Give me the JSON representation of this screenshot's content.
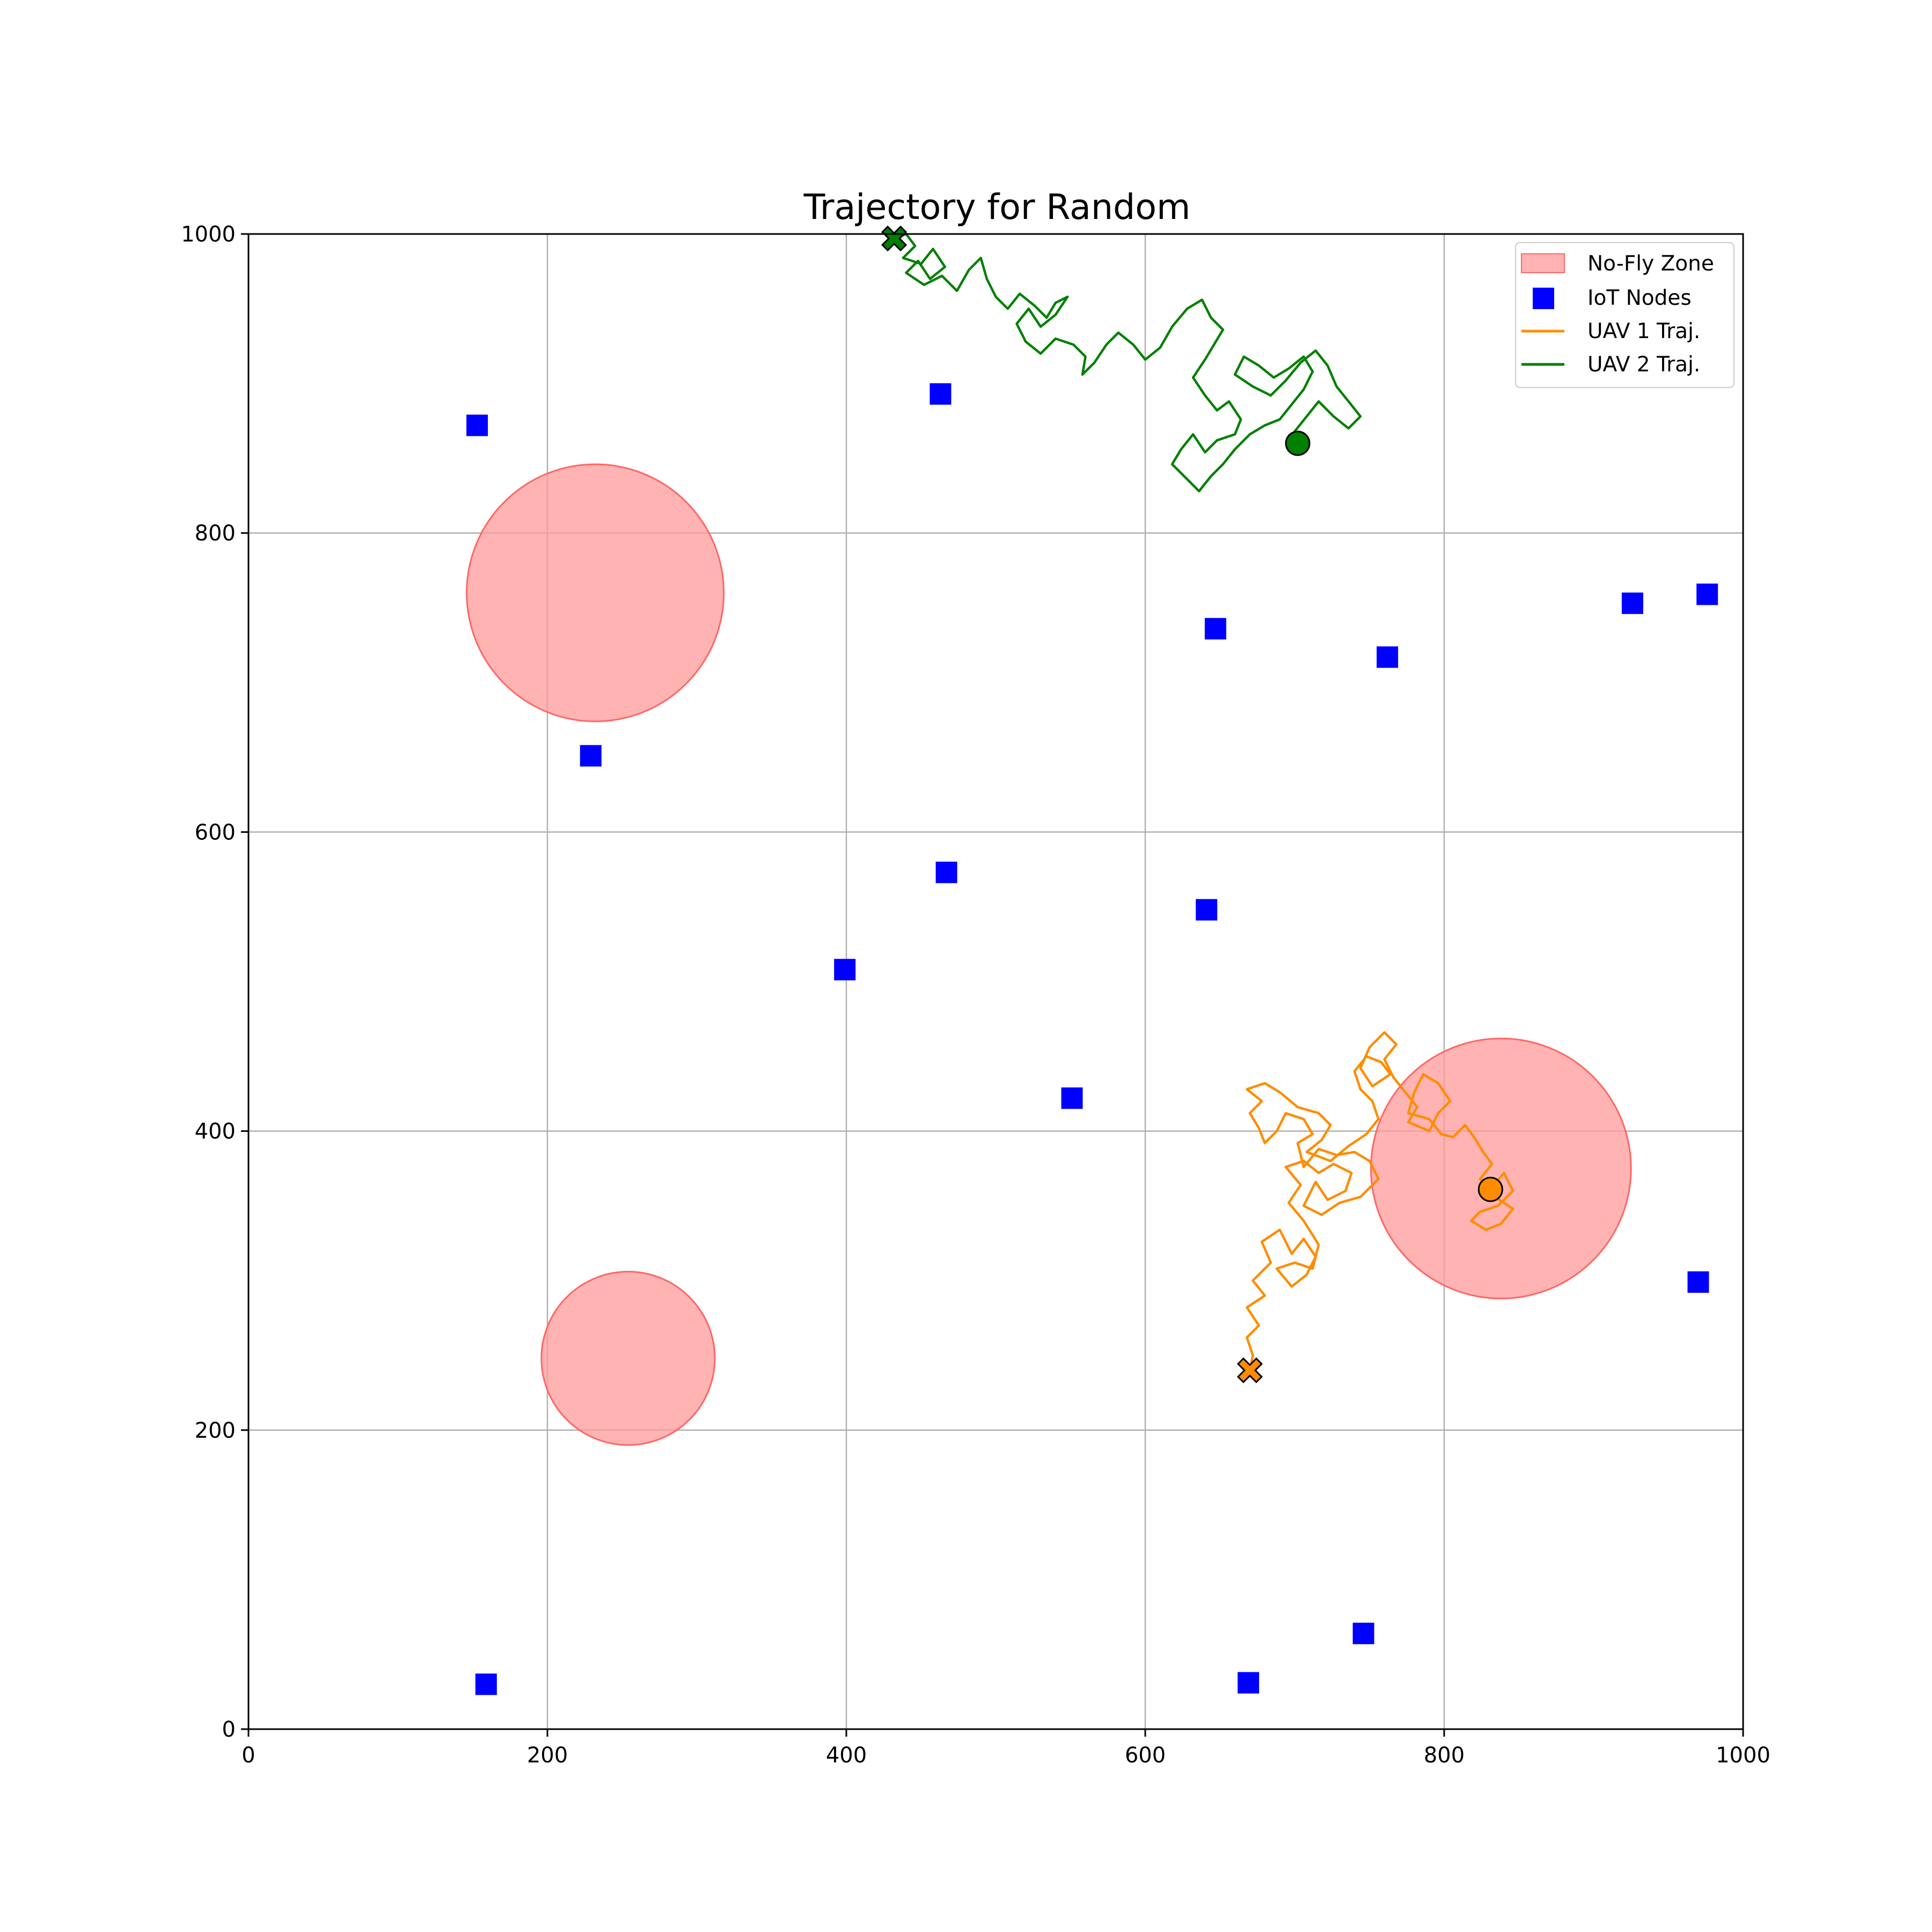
{
  "chart_data": {
    "type": "scatter",
    "title": "Trajectory for Random",
    "xlabel": "",
    "ylabel": "",
    "xlim": [
      0,
      1000
    ],
    "ylim": [
      0,
      1000
    ],
    "xticks": [
      0,
      200,
      400,
      600,
      800,
      1000
    ],
    "yticks": [
      0,
      200,
      400,
      600,
      800,
      1000
    ],
    "xtick_labels": [
      "0",
      "200",
      "400",
      "600",
      "800",
      "1000"
    ],
    "ytick_labels": [
      "0",
      "200",
      "400",
      "600",
      "800",
      "1000"
    ],
    "grid": true,
    "legend_position": "top-right",
    "legend": [
      {
        "label": "No-Fly Zone",
        "kind": "patch"
      },
      {
        "label": "IoT Nodes",
        "kind": "square-marker"
      },
      {
        "label": "UAV 1 Traj.",
        "kind": "line"
      },
      {
        "label": "UAV 2 Traj.",
        "kind": "line"
      }
    ],
    "colors": {
      "no_fly_fill": "#ff9999",
      "no_fly_edge": "#ff6666",
      "iot": "#0000ff",
      "uav1": "#ff8c00",
      "uav2": "#008000",
      "grid": "#b0b0b0"
    },
    "no_fly_zones": [
      {
        "cx": 232,
        "cy": 760,
        "r": 86
      },
      {
        "cx": 254,
        "cy": 248,
        "r": 58
      },
      {
        "cx": 838,
        "cy": 375,
        "r": 87
      }
    ],
    "iot_nodes": [
      {
        "x": 153,
        "y": 872
      },
      {
        "x": 463,
        "y": 893
      },
      {
        "x": 647,
        "y": 736
      },
      {
        "x": 762,
        "y": 717
      },
      {
        "x": 926,
        "y": 753
      },
      {
        "x": 976,
        "y": 759
      },
      {
        "x": 229,
        "y": 651
      },
      {
        "x": 467,
        "y": 573
      },
      {
        "x": 641,
        "y": 548
      },
      {
        "x": 399,
        "y": 508
      },
      {
        "x": 551,
        "y": 422
      },
      {
        "x": 970,
        "y": 299
      },
      {
        "x": 159,
        "y": 30
      },
      {
        "x": 669,
        "y": 31
      },
      {
        "x": 746,
        "y": 64
      }
    ],
    "series": [
      {
        "name": "UAV 1 Traj.",
        "start": {
          "x": 670,
          "y": 240,
          "marker": "X"
        },
        "end": {
          "x": 831,
          "y": 361,
          "marker": "circle"
        },
        "points": [
          [
            670,
            240
          ],
          [
            672,
            250
          ],
          [
            668,
            262
          ],
          [
            676,
            270
          ],
          [
            668,
            282
          ],
          [
            680,
            290
          ],
          [
            672,
            300
          ],
          [
            684,
            312
          ],
          [
            678,
            326
          ],
          [
            690,
            334
          ],
          [
            698,
            318
          ],
          [
            706,
            328
          ],
          [
            714,
            316
          ],
          [
            708,
            304
          ],
          [
            698,
            296
          ],
          [
            688,
            308
          ],
          [
            700,
            312
          ],
          [
            712,
            308
          ],
          [
            716,
            324
          ],
          [
            706,
            340
          ],
          [
            696,
            352
          ],
          [
            704,
            364
          ],
          [
            694,
            376
          ],
          [
            706,
            380
          ],
          [
            716,
            372
          ],
          [
            726,
            378
          ],
          [
            738,
            372
          ],
          [
            734,
            360
          ],
          [
            722,
            354
          ],
          [
            714,
            366
          ],
          [
            706,
            350
          ],
          [
            718,
            344
          ],
          [
            730,
            352
          ],
          [
            744,
            356
          ],
          [
            756,
            368
          ],
          [
            750,
            380
          ],
          [
            740,
            386
          ],
          [
            728,
            384
          ],
          [
            716,
            388
          ],
          [
            706,
            376
          ],
          [
            702,
            392
          ],
          [
            712,
            398
          ],
          [
            706,
            408
          ],
          [
            694,
            412
          ],
          [
            688,
            400
          ],
          [
            680,
            392
          ],
          [
            676,
            402
          ],
          [
            670,
            412
          ],
          [
            678,
            420
          ],
          [
            668,
            428
          ],
          [
            680,
            432
          ],
          [
            690,
            426
          ],
          [
            702,
            416
          ],
          [
            716,
            412
          ],
          [
            724,
            404
          ],
          [
            718,
            394
          ],
          [
            708,
            386
          ],
          [
            724,
            380
          ],
          [
            736,
            390
          ],
          [
            748,
            398
          ],
          [
            756,
            408
          ],
          [
            752,
            420
          ],
          [
            744,
            428
          ],
          [
            740,
            440
          ],
          [
            748,
            450
          ],
          [
            758,
            446
          ],
          [
            764,
            438
          ],
          [
            752,
            430
          ],
          [
            744,
            442
          ],
          [
            750,
            456
          ],
          [
            760,
            466
          ],
          [
            768,
            458
          ],
          [
            760,
            448
          ],
          [
            766,
            436
          ],
          [
            774,
            426
          ],
          [
            782,
            416
          ],
          [
            776,
            406
          ],
          [
            790,
            400
          ],
          [
            796,
            412
          ],
          [
            804,
            420
          ],
          [
            796,
            432
          ],
          [
            786,
            438
          ],
          [
            780,
            426
          ],
          [
            776,
            412
          ],
          [
            790,
            408
          ],
          [
            798,
            398
          ],
          [
            806,
            396
          ],
          [
            814,
            404
          ],
          [
            820,
            396
          ],
          [
            826,
            386
          ],
          [
            832,
            378
          ],
          [
            824,
            368
          ],
          [
            832,
            362
          ],
          [
            840,
            372
          ],
          [
            846,
            360
          ],
          [
            836,
            350
          ],
          [
            824,
            346
          ],
          [
            818,
            340
          ],
          [
            828,
            334
          ],
          [
            838,
            338
          ],
          [
            846,
            348
          ],
          [
            834,
            356
          ],
          [
            831,
            361
          ]
        ]
      },
      {
        "name": "UAV 2 Traj.",
        "start": {
          "x": 432,
          "y": 997,
          "marker": "X"
        },
        "end": {
          "x": 702,
          "y": 860,
          "marker": "circle"
        },
        "points": [
          [
            432,
            997
          ],
          [
            440,
            1000
          ],
          [
            446,
            992
          ],
          [
            438,
            984
          ],
          [
            450,
            980
          ],
          [
            458,
            990
          ],
          [
            466,
            978
          ],
          [
            456,
            970
          ],
          [
            448,
            982
          ],
          [
            440,
            974
          ],
          [
            452,
            966
          ],
          [
            464,
            972
          ],
          [
            474,
            962
          ],
          [
            482,
            976
          ],
          [
            490,
            984
          ],
          [
            494,
            970
          ],
          [
            500,
            958
          ],
          [
            508,
            950
          ],
          [
            516,
            960
          ],
          [
            526,
            952
          ],
          [
            534,
            944
          ],
          [
            540,
            954
          ],
          [
            548,
            958
          ],
          [
            540,
            946
          ],
          [
            530,
            938
          ],
          [
            522,
            950
          ],
          [
            514,
            940
          ],
          [
            520,
            928
          ],
          [
            530,
            920
          ],
          [
            540,
            930
          ],
          [
            552,
            926
          ],
          [
            560,
            918
          ],
          [
            558,
            906
          ],
          [
            566,
            914
          ],
          [
            574,
            926
          ],
          [
            582,
            934
          ],
          [
            592,
            926
          ],
          [
            600,
            916
          ],
          [
            610,
            924
          ],
          [
            618,
            938
          ],
          [
            628,
            950
          ],
          [
            638,
            956
          ],
          [
            644,
            944
          ],
          [
            652,
            936
          ],
          [
            646,
            926
          ],
          [
            640,
            916
          ],
          [
            632,
            904
          ],
          [
            640,
            892
          ],
          [
            648,
            882
          ],
          [
            656,
            888
          ],
          [
            664,
            876
          ],
          [
            660,
            866
          ],
          [
            648,
            862
          ],
          [
            640,
            854
          ],
          [
            632,
            866
          ],
          [
            624,
            856
          ],
          [
            618,
            846
          ],
          [
            628,
            836
          ],
          [
            636,
            828
          ],
          [
            644,
            838
          ],
          [
            652,
            846
          ],
          [
            660,
            856
          ],
          [
            670,
            866
          ],
          [
            680,
            872
          ],
          [
            690,
            876
          ],
          [
            698,
            886
          ],
          [
            706,
            896
          ],
          [
            712,
            908
          ],
          [
            706,
            918
          ],
          [
            696,
            910
          ],
          [
            686,
            904
          ],
          [
            676,
            912
          ],
          [
            666,
            918
          ],
          [
            660,
            906
          ],
          [
            672,
            898
          ],
          [
            684,
            892
          ],
          [
            694,
            902
          ],
          [
            704,
            914
          ],
          [
            714,
            922
          ],
          [
            722,
            912
          ],
          [
            728,
            898
          ],
          [
            736,
            888
          ],
          [
            744,
            878
          ],
          [
            736,
            870
          ],
          [
            726,
            878
          ],
          [
            716,
            888
          ],
          [
            708,
            878
          ],
          [
            700,
            868
          ],
          [
            708,
            856
          ],
          [
            702,
            860
          ]
        ]
      }
    ]
  }
}
